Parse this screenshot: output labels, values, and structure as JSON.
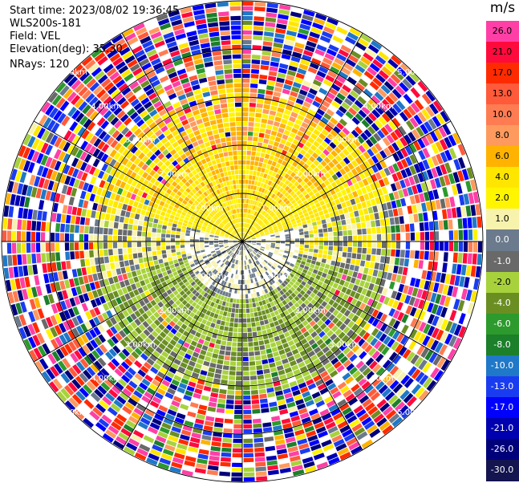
{
  "header": {
    "start_time": "Start time: 2023/08/02 19:36:45",
    "instrument": "WLS200s-181",
    "field": "Field: VEL",
    "elevation": "Elevation(deg): 35.30",
    "nrays": "NRays: 120"
  },
  "colorbar": {
    "unit": "m/s",
    "levels": [
      {
        "label": "26.0",
        "color": "#ff3fa6"
      },
      {
        "label": "21.0",
        "color": "#ff0a3c"
      },
      {
        "label": "17.0",
        "color": "#ff2b00"
      },
      {
        "label": "13.0",
        "color": "#ff5a3a"
      },
      {
        "label": "10.0",
        "color": "#ff7c52"
      },
      {
        "label": "8.0",
        "color": "#ff9a5e"
      },
      {
        "label": "6.0",
        "color": "#ffb300"
      },
      {
        "label": "4.0",
        "color": "#ffe600"
      },
      {
        "label": "2.0",
        "color": "#fff500"
      },
      {
        "label": "1.0",
        "color": "#f7f3ad"
      },
      {
        "label": "0.0",
        "color": "#6b7a8c"
      },
      {
        "label": "-1.0",
        "color": "#696969"
      },
      {
        "label": "-2.0",
        "color": "#a8d23c"
      },
      {
        "label": "-4.0",
        "color": "#6b8e23"
      },
      {
        "label": "-6.0",
        "color": "#2c9a2c"
      },
      {
        "label": "-8.0",
        "color": "#1c7f2a"
      },
      {
        "label": "-10.0",
        "color": "#1f78c8"
      },
      {
        "label": "-13.0",
        "color": "#1a3cf0"
      },
      {
        "label": "-17.0",
        "color": "#0000ff"
      },
      {
        "label": "-21.0",
        "color": "#0000b0"
      },
      {
        "label": "-26.0",
        "color": "#00007a"
      },
      {
        "label": "-30.0",
        "color": "#141450"
      }
    ]
  },
  "chart_data": {
    "type": "heatmap",
    "projection": "polar (PPI)",
    "field": "VEL",
    "units": "m/s",
    "n_rays": 120,
    "elevation_deg": 35.3,
    "range_rings_km": [
      1.0,
      2.0,
      3.0,
      4.0,
      5.0
    ],
    "ring_labels": [
      "1.00km",
      "2.00km",
      "3.00km",
      "4.00km",
      "5.00km"
    ],
    "max_range_km": 5.0,
    "azimuth_lines_deg": [
      0,
      30,
      60,
      90,
      120,
      150,
      180,
      210,
      240,
      270,
      300,
      330
    ],
    "gate_spacing_km": 0.1,
    "sectors": [
      {
        "azimuth_from_deg": 280,
        "azimuth_to_deg": 80,
        "range_km": [
          0.0,
          3.0
        ],
        "velocity_m_s": [
          1.0,
          8.0
        ],
        "description": "approaching-away positive velocities, yellow to orange"
      },
      {
        "azimuth_from_deg": 100,
        "azimuth_to_deg": 260,
        "range_km": [
          0.0,
          3.2
        ],
        "velocity_m_s": [
          -6.0,
          -1.0
        ],
        "description": "negative velocities, green"
      },
      {
        "azimuth_from_deg": 60,
        "azimuth_to_deg": 300,
        "range_km": [
          0.0,
          1.2
        ],
        "velocity_m_s": [
          -1.0,
          1.0
        ],
        "description": "near-zero velocities, grey"
      },
      {
        "azimuth_from_deg": 0,
        "azimuth_to_deg": 360,
        "range_km": [
          3.0,
          5.0
        ],
        "velocity_m_s": [
          -30.0,
          26.0
        ],
        "description": "noise, all colors"
      }
    ],
    "xlabel": "",
    "ylabel": ""
  }
}
